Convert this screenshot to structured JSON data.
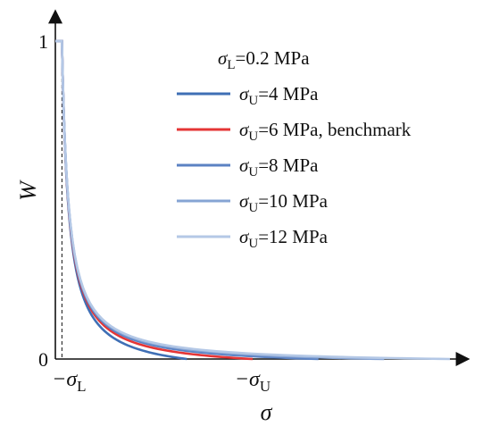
{
  "chart_data": {
    "type": "line",
    "title": "",
    "xlabel": "σ",
    "ylabel": "W",
    "x_ticks": [
      {
        "value": 0.2,
        "prefix": "−σ",
        "sub": "L"
      },
      {
        "value": 6,
        "prefix": "−σ",
        "sub": "U"
      }
    ],
    "y_ticks": [
      {
        "value": 0,
        "label": "0"
      },
      {
        "value": 1,
        "label": "1"
      }
    ],
    "xlim": [
      0,
      14.0
    ],
    "ylim": [
      0,
      1.1
    ],
    "sigma_L": 0.2,
    "sigma_L_label": {
      "prefix": "σ",
      "sub": "L",
      "suffix": "=0.2 MPa"
    },
    "legend_placement": "top-right",
    "grid": false,
    "series": [
      {
        "name_prefix": "σ",
        "name_sub": "U",
        "name_suffix": "=4 MPa",
        "sigma_U": 4,
        "color": "#3f6fb5"
      },
      {
        "name_prefix": "σ",
        "name_sub": "U",
        "name_suffix": "=6 MPa, benchmark",
        "sigma_U": 6,
        "color": "#e53535"
      },
      {
        "name_prefix": "σ",
        "name_sub": "U",
        "name_suffix": "=8 MPa",
        "sigma_U": 8,
        "color": "#5b82c3"
      },
      {
        "name_prefix": "σ",
        "name_sub": "U",
        "name_suffix": "=10 MPa",
        "sigma_U": 10,
        "color": "#86a4d4"
      },
      {
        "name_prefix": "σ",
        "name_sub": "U",
        "name_suffix": "=12 MPa",
        "sigma_U": 12,
        "color": "#b4c8e6"
      }
    ],
    "curve_model": {
      "form": "W = A·(1/σ − 1/σU) clipped to 1 above σ = σL, with A chosen so W(σL)=1",
      "samples_per_series": 60
    }
  }
}
